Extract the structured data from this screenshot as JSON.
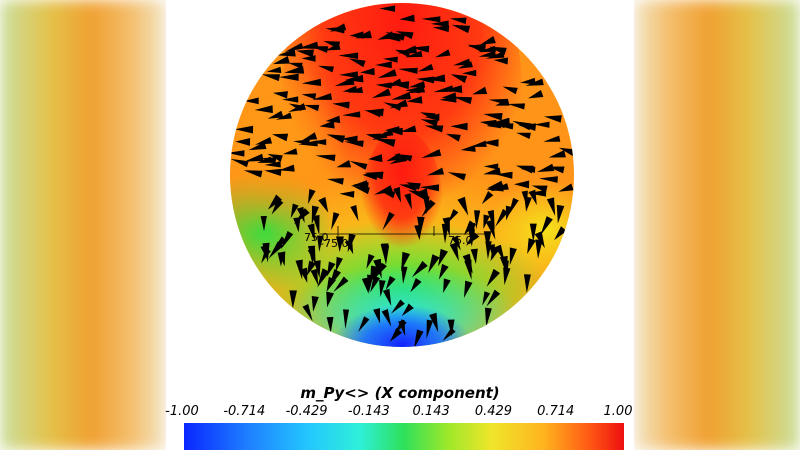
{
  "colorbar": {
    "title": "m_Py<> (X component)",
    "ticks": [
      "-1.00",
      "-0.714",
      "-0.429",
      "-0.143",
      "0.143",
      "0.429",
      "0.714",
      "1.00"
    ],
    "min": -1.0,
    "max": 1.0
  },
  "axes_labels": {
    "left_small": "75.0",
    "left": "-75.0",
    "right": "75.0"
  },
  "colors": {
    "low": "#0a26ff",
    "mid": "#2ee05a",
    "high": "#ee0e10",
    "arrow": "#000000"
  }
}
